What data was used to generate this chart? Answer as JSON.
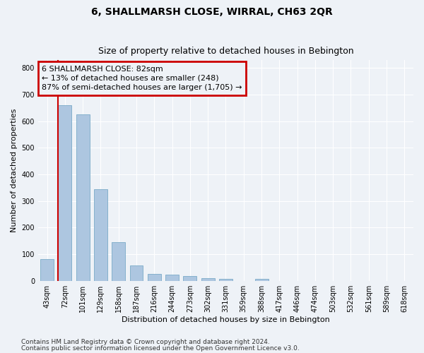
{
  "title": "6, SHALLMARSH CLOSE, WIRRAL, CH63 2QR",
  "subtitle": "Size of property relative to detached houses in Bebington",
  "xlabel": "Distribution of detached houses by size in Bebington",
  "ylabel": "Number of detached properties",
  "categories": [
    "43sqm",
    "72sqm",
    "101sqm",
    "129sqm",
    "158sqm",
    "187sqm",
    "216sqm",
    "244sqm",
    "273sqm",
    "302sqm",
    "331sqm",
    "359sqm",
    "388sqm",
    "417sqm",
    "446sqm",
    "474sqm",
    "503sqm",
    "532sqm",
    "561sqm",
    "589sqm",
    "618sqm"
  ],
  "values": [
    82,
    660,
    625,
    345,
    145,
    58,
    25,
    22,
    17,
    11,
    7,
    0,
    8,
    0,
    0,
    0,
    0,
    0,
    0,
    0,
    0
  ],
  "bar_color": "#adc6e0",
  "bar_edge_color": "#7aaac8",
  "property_line_color": "#cc0000",
  "annotation_line1": "6 SHALLMARSH CLOSE: 82sqm",
  "annotation_line2": "← 13% of detached houses are smaller (248)",
  "annotation_line3": "87% of semi-detached houses are larger (1,705) →",
  "annotation_box_color": "#cc0000",
  "ylim": [
    0,
    830
  ],
  "yticks": [
    0,
    100,
    200,
    300,
    400,
    500,
    600,
    700,
    800
  ],
  "footer1": "Contains HM Land Registry data © Crown copyright and database right 2024.",
  "footer2": "Contains public sector information licensed under the Open Government Licence v3.0.",
  "background_color": "#eef2f7",
  "grid_color": "#ffffff",
  "title_fontsize": 10,
  "subtitle_fontsize": 9,
  "axis_label_fontsize": 8,
  "tick_fontsize": 7,
  "annotation_fontsize": 8,
  "footer_fontsize": 6.5,
  "property_line_index": 0.6
}
